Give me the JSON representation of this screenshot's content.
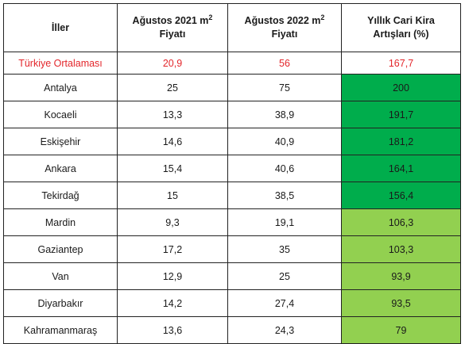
{
  "table": {
    "headers": {
      "col1": "İller",
      "col2_line1": "Ağustos 2021 m",
      "col2_sup": "2",
      "col2_line2": "Fiyatı",
      "col3_line1": "Ağustos 2022 m",
      "col3_sup": "2",
      "col3_line2": "Fiyatı",
      "col4_line1": "Yıllık Cari Kira",
      "col4_line2": "Artışları (%)"
    },
    "average_row": {
      "name": "Türkiye Ortalaması",
      "aug2021": "20,9",
      "aug2022": "56",
      "increase": "167,7",
      "text_color": "#e3262b"
    },
    "rows": [
      {
        "name": "Antalya",
        "aug2021": "25",
        "aug2022": "75",
        "increase": "200",
        "highlight": "#00ad4c"
      },
      {
        "name": "Kocaeli",
        "aug2021": "13,3",
        "aug2022": "38,9",
        "increase": "191,7",
        "highlight": "#00ad4c"
      },
      {
        "name": "Eskişehir",
        "aug2021": "14,6",
        "aug2022": "40,9",
        "increase": "181,2",
        "highlight": "#00ad4c"
      },
      {
        "name": "Ankara",
        "aug2021": "15,4",
        "aug2022": "40,6",
        "increase": "164,1",
        "highlight": "#00ad4c"
      },
      {
        "name": "Tekirdağ",
        "aug2021": "15",
        "aug2022": "38,5",
        "increase": "156,4",
        "highlight": "#00ad4c"
      },
      {
        "name": "Mardin",
        "aug2021": "9,3",
        "aug2022": "19,1",
        "increase": "106,3",
        "highlight": "#92d050"
      },
      {
        "name": "Gaziantep",
        "aug2021": "17,2",
        "aug2022": "35",
        "increase": "103,3",
        "highlight": "#92d050"
      },
      {
        "name": "Van",
        "aug2021": "12,9",
        "aug2022": "25",
        "increase": "93,9",
        "highlight": "#92d050"
      },
      {
        "name": "Diyarbakır",
        "aug2021": "14,2",
        "aug2022": "27,4",
        "increase": "93,5",
        "highlight": "#92d050"
      },
      {
        "name": "Kahramanmaraş",
        "aug2021": "13,6",
        "aug2022": "24,3",
        "increase": "79",
        "highlight": "#92d050"
      }
    ]
  }
}
